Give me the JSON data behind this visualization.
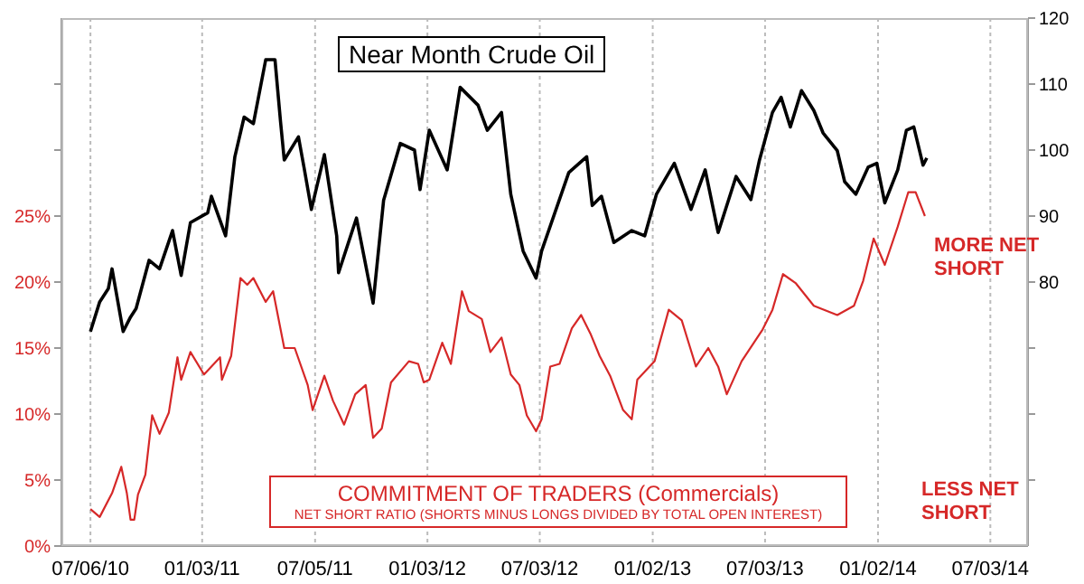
{
  "chart_data": {
    "type": "line",
    "annotations": [
      "Near Month Crude Oil",
      "COMMITMENT OF TRADERS (Commercials)",
      "NET SHORT RATIO (SHORTS MINUS LONGS DIVIDED BY TOTAL OPEN INTEREST)",
      "MORE NET SHORT",
      "LESS NET SHORT"
    ],
    "series": [
      {
        "color": "#000000",
        "axis": "y2",
        "x": [
          "2010-07-06",
          "2010-07-21",
          "2010-08-04",
          "2010-08-10",
          "2010-08-28",
          "2010-09-09",
          "2010-09-18",
          "2010-10-09",
          "2010-10-26",
          "2010-11-16",
          "2010-11-30",
          "2010-12-15",
          "2011-01-12",
          "2011-01-18",
          "2011-02-10",
          "2011-02-25",
          "2011-03-12",
          "2011-03-27",
          "2011-04-16",
          "2011-05-01",
          "2011-05-10",
          "2011-05-16",
          "2011-06-08",
          "2011-06-17",
          "2011-06-29",
          "2011-07-20",
          "2011-08-09",
          "2011-08-12",
          "2011-09-10",
          "2011-09-22",
          "2011-10-07",
          "2011-10-24",
          "2011-11-20",
          "2011-12-13",
          "2011-12-22",
          "2012-01-06",
          "2012-02-04",
          "2012-02-25",
          "2012-03-25",
          "2012-04-09",
          "2012-05-02",
          "2012-05-17",
          "2012-06-06",
          "2012-06-27",
          "2012-07-06",
          "2012-08-19",
          "2012-09-17",
          "2012-09-26",
          "2012-10-11",
          "2012-10-31",
          "2012-11-29",
          "2012-12-20",
          "2013-01-08",
          "2013-02-06",
          "2013-03-05",
          "2013-03-28",
          "2013-04-18",
          "2013-05-17",
          "2013-06-10",
          "2013-06-24",
          "2013-07-15",
          "2013-07-29",
          "2013-08-13",
          "2013-08-31",
          "2013-09-20",
          "2013-10-05",
          "2013-10-28",
          "2013-11-09",
          "2013-11-27",
          "2013-12-17",
          "2013-12-31",
          "2014-01-13",
          "2014-02-03",
          "2014-02-17",
          "2014-03-01",
          "2014-03-16",
          "2014-03-22"
        ],
        "values": [
          72.5,
          77,
          79,
          82,
          72.5,
          74.7,
          76,
          83.3,
          82,
          87.8,
          81,
          89,
          90.5,
          93,
          87,
          99,
          105,
          104,
          113.7,
          113.7,
          104.3,
          98.5,
          102,
          97.4,
          91,
          99.3,
          87,
          81.4,
          89.7,
          84,
          76.8,
          92.4,
          101,
          100,
          94,
          103,
          97,
          109.5,
          106.8,
          103,
          105.7,
          93.3,
          84.7,
          80.6,
          84.7,
          96.6,
          99,
          91.6,
          93,
          86,
          87.8,
          87,
          93.3,
          98,
          91,
          97,
          87.5,
          96,
          92.5,
          98.5,
          105.7,
          108,
          103.5,
          109,
          106,
          102.6,
          99.9,
          95.2,
          93.3,
          97.4,
          98,
          92,
          97,
          103,
          103.5,
          97.7,
          98.8
        ]
      },
      {
        "color": "#d62828",
        "x": [
          "2010-07-06",
          "2010-07-21",
          "2010-08-10",
          "2010-08-25",
          "2010-09-03",
          "2010-09-09",
          "2010-09-15",
          "2010-09-21",
          "2010-10-03",
          "2010-10-14",
          "2010-10-26",
          "2010-11-10",
          "2010-11-24",
          "2010-11-30",
          "2010-12-15",
          "2011-01-06",
          "2011-02-01",
          "2011-02-04",
          "2011-02-19",
          "2011-03-06",
          "2011-03-17",
          "2011-03-27",
          "2011-04-16",
          "2011-04-28",
          "2011-05-16",
          "2011-06-02",
          "2011-06-23",
          "2011-07-01",
          "2011-07-20",
          "2011-08-03",
          "2011-08-21",
          "2011-09-08",
          "2011-09-25",
          "2011-10-07",
          "2011-10-21",
          "2011-11-05",
          "2011-12-04",
          "2011-12-19",
          "2011-12-28",
          "2012-01-06",
          "2012-01-27",
          "2012-02-10",
          "2012-02-28",
          "2012-03-10",
          "2012-03-31",
          "2012-04-14",
          "2012-05-02",
          "2012-05-17",
          "2012-05-31",
          "2012-06-12",
          "2012-06-27",
          "2012-07-06",
          "2012-07-20",
          "2012-08-04",
          "2012-08-24",
          "2012-09-08",
          "2012-09-23",
          "2012-10-08",
          "2012-10-25",
          "2012-11-15",
          "2012-11-29",
          "2012-12-08",
          "2013-01-05",
          "2013-01-28",
          "2013-02-18",
          "2013-03-13",
          "2013-04-02",
          "2013-04-18",
          "2013-05-02",
          "2013-05-26",
          "2013-06-19",
          "2013-06-29",
          "2013-07-15",
          "2013-08-01",
          "2013-08-22",
          "2013-09-20",
          "2013-10-28",
          "2013-11-24",
          "2013-12-09",
          "2013-12-26",
          "2014-01-13",
          "2014-02-03",
          "2014-02-20",
          "2014-03-04",
          "2014-03-19"
        ],
        "values": [
          2.8,
          2.2,
          4,
          6,
          4,
          2,
          2,
          3.9,
          5.4,
          9.9,
          8.5,
          10.1,
          14.3,
          12.6,
          14.7,
          13,
          14.3,
          12.6,
          14.4,
          20.3,
          19.8,
          20.3,
          18.5,
          19.3,
          15,
          15,
          12.2,
          10.3,
          12.9,
          11,
          9.2,
          11.5,
          12.2,
          8.2,
          8.9,
          12.4,
          14,
          13.8,
          12.4,
          12.6,
          15.4,
          13.8,
          19.3,
          17.8,
          17.2,
          14.7,
          15.8,
          13,
          12.2,
          9.9,
          8.7,
          9.6,
          13.6,
          13.8,
          16.5,
          17.5,
          16.1,
          14.4,
          12.9,
          10.3,
          9.6,
          12.6,
          14,
          17.9,
          17.1,
          13.6,
          15,
          13.6,
          11.5,
          14,
          15.7,
          16.4,
          17.9,
          20.6,
          19.9,
          18.2,
          17.5,
          18.2,
          20.1,
          23.3,
          21.3,
          24.2,
          26.8,
          26.8,
          25
        ]
      }
    ],
    "xlim": [
      "2010-05-20",
      "2014-09-02"
    ],
    "xticks": [
      {
        "value": "2010-07-06",
        "label": "07/06/10"
      },
      {
        "value": "2011-01-03",
        "label": "01/03/11"
      },
      {
        "value": "2011-07-05",
        "label": "07/05/11"
      },
      {
        "value": "2012-01-03",
        "label": "01/03/12"
      },
      {
        "value": "2012-07-03",
        "label": "07/03/12"
      },
      {
        "value": "2013-01-02",
        "label": "01/02/13"
      },
      {
        "value": "2013-07-03",
        "label": "07/03/13"
      },
      {
        "value": "2014-01-02",
        "label": "01/02/14"
      },
      {
        "value": "2014-07-03",
        "label": "07/03/14"
      }
    ],
    "ylim": [
      0,
      40
    ],
    "yticks": [
      {
        "value": 0,
        "label": "0%"
      },
      {
        "value": 5,
        "label": "5%"
      },
      {
        "value": 10,
        "label": "10%"
      },
      {
        "value": 15,
        "label": "15%"
      },
      {
        "value": 20,
        "label": "20%"
      },
      {
        "value": 25,
        "label": "25%"
      },
      {
        "value": 30,
        "label": null
      },
      {
        "value": 35,
        "label": null
      }
    ],
    "y2lim": [
      40,
      120
    ],
    "y2ticks": [
      {
        "value": 50,
        "label": null
      },
      {
        "value": 60,
        "label": null
      },
      {
        "value": 70,
        "label": null
      },
      80,
      90,
      100,
      110,
      120
    ],
    "grid": "x",
    "legend": false,
    "marker": "none",
    "line_style": "solid"
  }
}
